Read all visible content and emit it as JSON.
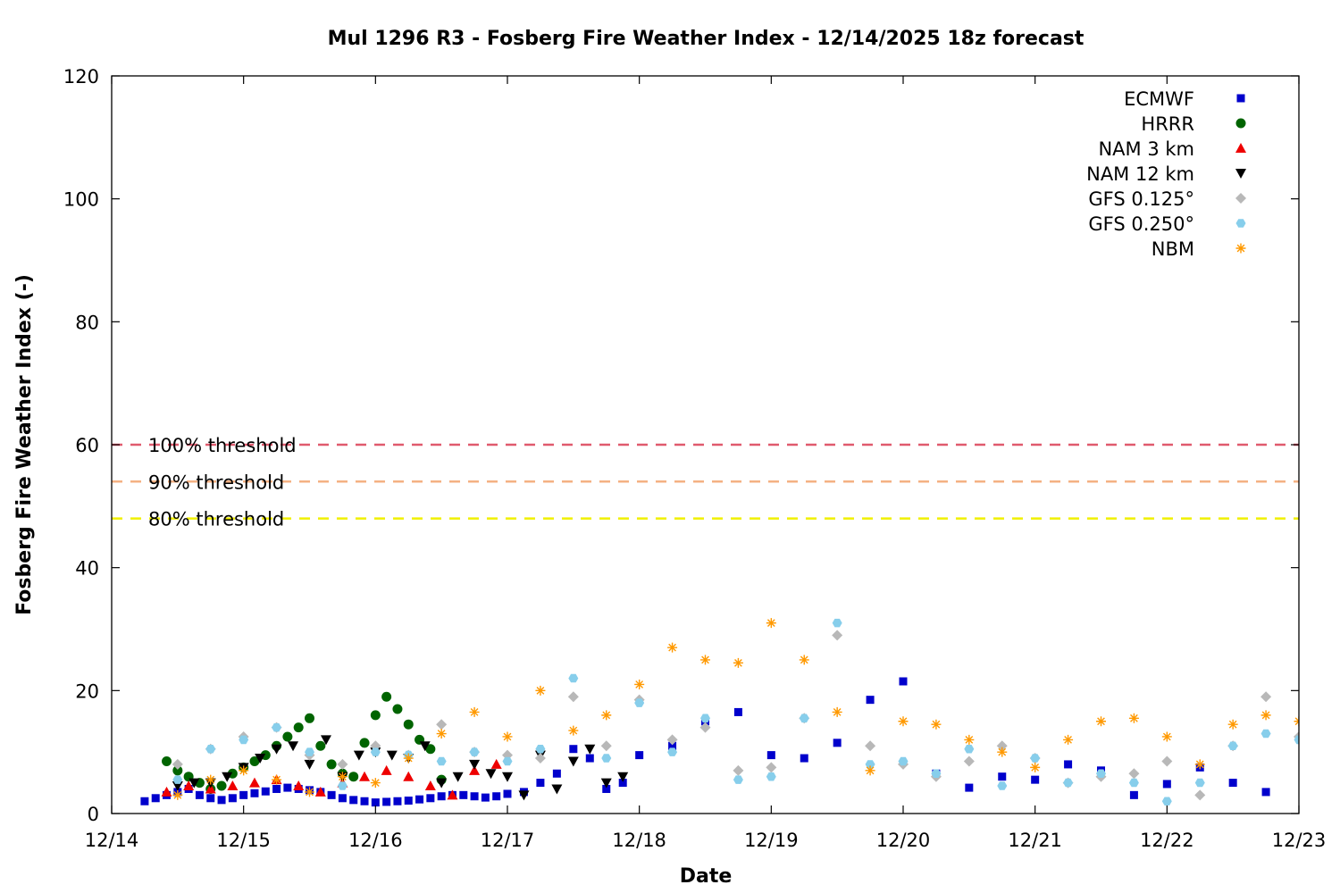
{
  "chart_data": {
    "type": "scatter",
    "title": "Mul 1296 R3 - Fosberg Fire Weather Index - 12/14/2025 18z forecast",
    "xlabel": "Date",
    "ylabel": "Fosberg Fire Weather Index (-)",
    "xlim": [
      "12/14",
      "12/23"
    ],
    "ylim": [
      0,
      120
    ],
    "x_ticks": [
      "12/14",
      "12/15",
      "12/16",
      "12/17",
      "12/18",
      "12/19",
      "12/20",
      "12/21",
      "12/22",
      "12/23"
    ],
    "y_ticks": [
      0,
      20,
      40,
      60,
      80,
      100,
      120
    ],
    "grid": false,
    "legend_position": "top-right",
    "thresholds": [
      {
        "label": "100% threshold",
        "value": 60,
        "color": "#e05a6e"
      },
      {
        "label": "90% threshold",
        "value": 54,
        "color": "#f4b183"
      },
      {
        "label": "80% threshold",
        "value": 48,
        "color": "#f0f000"
      }
    ],
    "series": [
      {
        "name": "ECMWF",
        "color": "#0000cc",
        "marker": "square",
        "x": [
          "12/14 06:00",
          "12/14 08:00",
          "12/14 10:00",
          "12/14 12:00",
          "12/14 14:00",
          "12/14 16:00",
          "12/14 18:00",
          "12/14 20:00",
          "12/14 22:00",
          "12/15 00:00",
          "12/15 02:00",
          "12/15 04:00",
          "12/15 06:00",
          "12/15 08:00",
          "12/15 10:00",
          "12/15 12:00",
          "12/15 14:00",
          "12/15 16:00",
          "12/15 18:00",
          "12/15 20:00",
          "12/15 22:00",
          "12/16 00:00",
          "12/16 02:00",
          "12/16 04:00",
          "12/16 06:00",
          "12/16 08:00",
          "12/16 10:00",
          "12/16 12:00",
          "12/16 14:00",
          "12/16 16:00",
          "12/16 18:00",
          "12/16 20:00",
          "12/16 22:00",
          "12/17 00:00",
          "12/17 03:00",
          "12/17 06:00",
          "12/17 09:00",
          "12/17 12:00",
          "12/17 15:00",
          "12/17 18:00",
          "12/17 21:00",
          "12/18 00:00",
          "12/18 06:00",
          "12/18 12:00",
          "12/18 18:00",
          "12/19 00:00",
          "12/19 06:00",
          "12/19 12:00",
          "12/19 18:00",
          "12/20 00:00",
          "12/20 06:00",
          "12/20 12:00",
          "12/20 18:00",
          "12/21 00:00",
          "12/21 06:00",
          "12/21 12:00",
          "12/21 18:00",
          "12/22 00:00",
          "12/22 06:00",
          "12/22 12:00",
          "12/22 18:00"
        ],
        "y": [
          2,
          2.5,
          3,
          3.5,
          4,
          3,
          2.5,
          2.2,
          2.5,
          3,
          3.3,
          3.6,
          4,
          4.2,
          4,
          3.8,
          3.5,
          3,
          2.5,
          2.2,
          2,
          1.8,
          1.9,
          2,
          2.1,
          2.3,
          2.5,
          2.8,
          3,
          3,
          2.8,
          2.6,
          2.8,
          3.2,
          3.5,
          5,
          6.5,
          10.5,
          9,
          4,
          5,
          9.5,
          11,
          15,
          16.5,
          9.5,
          9,
          11.5,
          18.5,
          21.5,
          6.5,
          4.2,
          6,
          5.5,
          8,
          7,
          3,
          4.8,
          7.5,
          5,
          3.5
        ]
      },
      {
        "name": "HRRR",
        "color": "#006400",
        "marker": "circle",
        "x": [
          "12/14 10:00",
          "12/14 12:00",
          "12/14 14:00",
          "12/14 16:00",
          "12/14 18:00",
          "12/14 20:00",
          "12/14 22:00",
          "12/15 00:00",
          "12/15 02:00",
          "12/15 04:00",
          "12/15 06:00",
          "12/15 08:00",
          "12/15 10:00",
          "12/15 12:00",
          "12/15 14:00",
          "12/15 16:00",
          "12/15 18:00",
          "12/15 20:00",
          "12/15 22:00",
          "12/16 00:00",
          "12/16 02:00",
          "12/16 04:00",
          "12/16 06:00",
          "12/16 08:00",
          "12/16 10:00",
          "12/16 12:00"
        ],
        "y": [
          8.5,
          7,
          6,
          5,
          4,
          4.5,
          6.5,
          7.5,
          8.5,
          9.5,
          11,
          12.5,
          14,
          15.5,
          11,
          8,
          6.5,
          6,
          11.5,
          16,
          19,
          17,
          14.5,
          12,
          10.5,
          5.5
        ]
      },
      {
        "name": "NAM 3 km",
        "color": "#ee0000",
        "marker": "triangle-up",
        "x": [
          "12/14 10:00",
          "12/14 14:00",
          "12/14 18:00",
          "12/14 22:00",
          "12/15 02:00",
          "12/15 06:00",
          "12/15 10:00",
          "12/15 14:00",
          "12/15 18:00",
          "12/15 22:00",
          "12/16 02:00",
          "12/16 06:00",
          "12/16 10:00",
          "12/16 14:00",
          "12/16 18:00",
          "12/16 22:00"
        ],
        "y": [
          3.5,
          4.5,
          4,
          4.5,
          5,
          5.5,
          4.5,
          3.5,
          5,
          6,
          7,
          6,
          4.5,
          3,
          7,
          8
        ]
      },
      {
        "name": "NAM 12 km",
        "color": "#000000",
        "marker": "triangle-down",
        "x": [
          "12/14 12:00",
          "12/14 15:00",
          "12/14 18:00",
          "12/14 21:00",
          "12/15 00:00",
          "12/15 03:00",
          "12/15 06:00",
          "12/15 09:00",
          "12/15 12:00",
          "12/15 15:00",
          "12/15 18:00",
          "12/15 21:00",
          "12/16 00:00",
          "12/16 03:00",
          "12/16 06:00",
          "12/16 09:00",
          "12/16 12:00",
          "12/16 15:00",
          "12/16 18:00",
          "12/16 21:00",
          "12/17 00:00",
          "12/17 03:00",
          "12/17 06:00",
          "12/17 09:00",
          "12/17 12:00",
          "12/17 15:00",
          "12/17 18:00",
          "12/17 21:00"
        ],
        "y": [
          4.5,
          5,
          5,
          6,
          7.5,
          9,
          10.5,
          11,
          8,
          12,
          6,
          9.5,
          10,
          9.5,
          9,
          11,
          5,
          6,
          8,
          6.5,
          6,
          3,
          9.5,
          4,
          8.5,
          10.5,
          5,
          6
        ]
      },
      {
        "name": "GFS 0.125°",
        "color": "#b8b8b8",
        "marker": "diamond",
        "x": [
          "12/14 12:00",
          "12/14 18:00",
          "12/15 00:00",
          "12/15 06:00",
          "12/15 12:00",
          "12/15 18:00",
          "12/16 00:00",
          "12/16 06:00",
          "12/16 12:00",
          "12/16 18:00",
          "12/17 00:00",
          "12/17 06:00",
          "12/17 12:00",
          "12/17 18:00",
          "12/18 00:00",
          "12/18 06:00",
          "12/18 12:00",
          "12/18 18:00",
          "12/19 00:00",
          "12/19 06:00",
          "12/19 12:00",
          "12/19 18:00",
          "12/20 00:00",
          "12/20 06:00",
          "12/20 12:00",
          "12/20 18:00",
          "12/21 00:00",
          "12/21 06:00",
          "12/21 12:00",
          "12/21 18:00",
          "12/22 00:00",
          "12/22 06:00",
          "12/22 12:00",
          "12/22 18:00",
          "12/23 00:00"
        ],
        "y": [
          8,
          10.5,
          12.5,
          14,
          9.5,
          8,
          11,
          9.5,
          14.5,
          10,
          9.5,
          9,
          19,
          11,
          18.5,
          12,
          14,
          7,
          7.5,
          15.5,
          29,
          11,
          8,
          6,
          8.5,
          11,
          9,
          5,
          6,
          6.5,
          8.5,
          3,
          11,
          19,
          12.5
        ]
      },
      {
        "name": "GFS 0.250°",
        "color": "#87ceeb",
        "marker": "hexagon",
        "x": [
          "12/14 12:00",
          "12/14 18:00",
          "12/15 00:00",
          "12/15 06:00",
          "12/15 12:00",
          "12/15 18:00",
          "12/16 00:00",
          "12/16 06:00",
          "12/16 12:00",
          "12/16 18:00",
          "12/17 00:00",
          "12/17 06:00",
          "12/17 12:00",
          "12/17 18:00",
          "12/18 00:00",
          "12/18 06:00",
          "12/18 12:00",
          "12/18 18:00",
          "12/19 00:00",
          "12/19 06:00",
          "12/19 12:00",
          "12/19 18:00",
          "12/20 00:00",
          "12/20 06:00",
          "12/20 12:00",
          "12/20 18:00",
          "12/21 00:00",
          "12/21 06:00",
          "12/21 12:00",
          "12/21 18:00",
          "12/22 00:00",
          "12/22 06:00",
          "12/22 12:00",
          "12/22 18:00",
          "12/23 00:00"
        ],
        "y": [
          5.5,
          10.5,
          12,
          14,
          10,
          4.5,
          10,
          9.5,
          8.5,
          10,
          8.5,
          10.5,
          22,
          9,
          18,
          10,
          15.5,
          5.5,
          6,
          15.5,
          31,
          8,
          8.5,
          6.5,
          10.5,
          4.5,
          9,
          5,
          6.5,
          5,
          2,
          5,
          11,
          13,
          12
        ]
      },
      {
        "name": "NBM",
        "color": "#ff9900",
        "marker": "star",
        "x": [
          "12/14 12:00",
          "12/14 18:00",
          "12/15 00:00",
          "12/15 06:00",
          "12/15 12:00",
          "12/15 18:00",
          "12/16 00:00",
          "12/16 06:00",
          "12/16 12:00",
          "12/16 18:00",
          "12/17 00:00",
          "12/17 06:00",
          "12/17 12:00",
          "12/17 18:00",
          "12/18 00:00",
          "12/18 06:00",
          "12/18 12:00",
          "12/18 18:00",
          "12/19 00:00",
          "12/19 06:00",
          "12/19 12:00",
          "12/19 18:00",
          "12/20 00:00",
          "12/20 06:00",
          "12/20 12:00",
          "12/20 18:00",
          "12/21 00:00",
          "12/21 06:00",
          "12/21 12:00",
          "12/21 18:00",
          "12/22 00:00",
          "12/22 06:00",
          "12/22 12:00",
          "12/22 18:00",
          "12/23 00:00"
        ],
        "y": [
          3,
          5.5,
          7,
          5.5,
          3.5,
          6,
          5,
          9,
          13,
          16.5,
          12.5,
          20,
          13.5,
          16,
          21,
          27,
          25,
          24.5,
          31,
          25,
          16.5,
          7,
          15,
          14.5,
          12,
          10,
          7.5,
          12,
          15,
          15.5,
          12.5,
          8,
          14.5,
          16,
          15
        ]
      }
    ]
  }
}
